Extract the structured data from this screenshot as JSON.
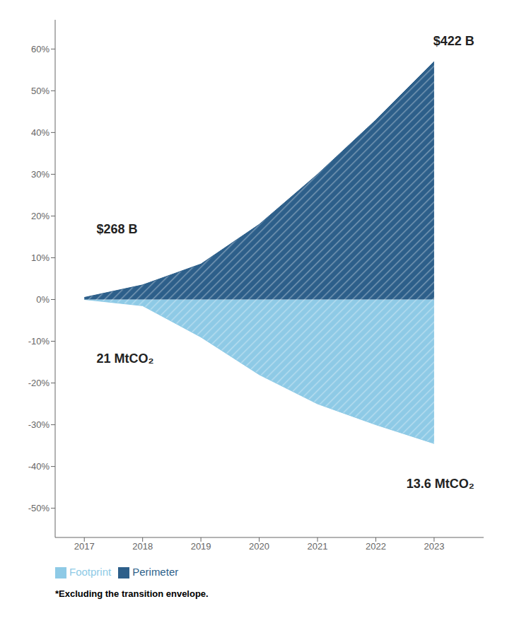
{
  "chart_data": {
    "type": "area",
    "x": [
      2017,
      2018,
      2019,
      2020,
      2021,
      2022,
      2023
    ],
    "series": [
      {
        "name": "Footprint",
        "color": "#8ecae6",
        "values": [
          0.0,
          -1.5,
          -9.0,
          -18.0,
          -25.0,
          -30.0,
          -34.5
        ]
      },
      {
        "name": "Perimeter",
        "color": "#2d5f8a",
        "values": [
          0.5,
          3.5,
          8.5,
          18.0,
          30.0,
          43.0,
          57.0
        ]
      }
    ],
    "xlim": [
      2016.5,
      2023.85
    ],
    "xticks": [
      2017,
      2018,
      2019,
      2020,
      2021,
      2022,
      2023
    ],
    "ylim": [
      -57,
      67
    ],
    "yticks": [
      {
        "value": -50,
        "label": "-50%"
      },
      {
        "value": -40,
        "label": "-40%"
      },
      {
        "value": -30,
        "label": "-30%"
      },
      {
        "value": -20,
        "label": "-20%"
      },
      {
        "value": -10,
        "label": "-10%"
      },
      {
        "value": 0,
        "label": "0%"
      },
      {
        "value": 10,
        "label": "10%"
      },
      {
        "value": 20,
        "label": "20%"
      },
      {
        "value": 30,
        "label": "30%"
      },
      {
        "value": 40,
        "label": "40%"
      },
      {
        "value": 50,
        "label": "50%"
      },
      {
        "value": 60,
        "label": "60%"
      }
    ],
    "annotations": [
      {
        "text": "$268 B",
        "x": 2017.15,
        "y": 17
      },
      {
        "text": "$422 B",
        "x": 2023.75,
        "y": 62
      },
      {
        "text": "21 MtCO₂",
        "x": 2017.15,
        "y": -14
      },
      {
        "text": "13.6 MtCO₂",
        "x": 2023.75,
        "y": -44
      }
    ],
    "footnote": "*Excluding the transition envelope.",
    "grid": false,
    "legend": "bottom"
  }
}
